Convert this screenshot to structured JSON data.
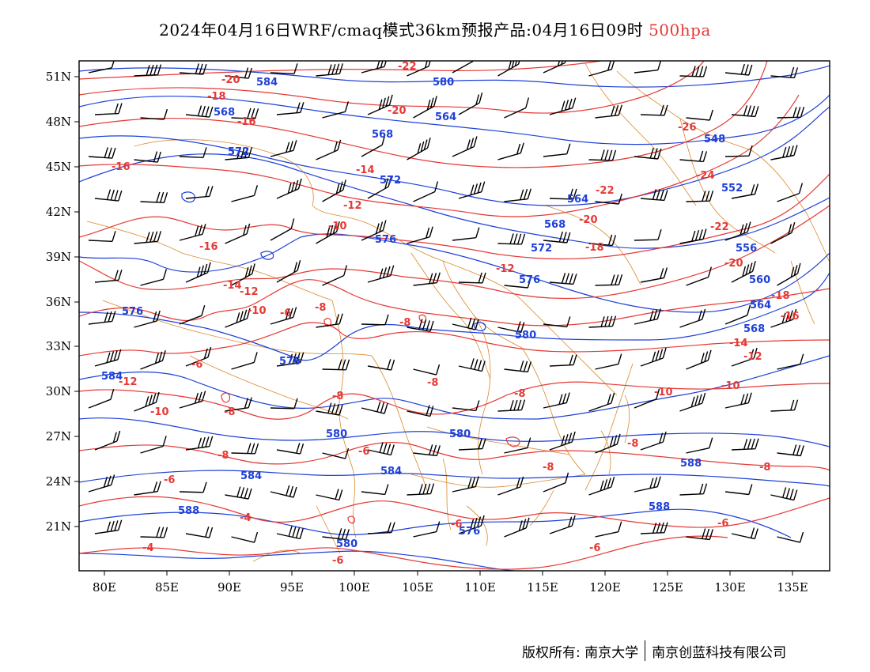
{
  "title": {
    "main": "2024年04月16日WRF/cmaq模式36km预报产品:04月16日09时",
    "level": "500hpa"
  },
  "colors": {
    "temperature": "#e53935",
    "height": "#1e40d8",
    "border": "#d9892b",
    "wind": "#000000"
  },
  "axes": {
    "lon_range": [
      78,
      138
    ],
    "lat_range": [
      17.8,
      51.8
    ],
    "x_ticks": [
      "80E",
      "85E",
      "90E",
      "95E",
      "100E",
      "105E",
      "110E",
      "115E",
      "120E",
      "125E",
      "130E",
      "135E"
    ],
    "y_ticks": [
      "51N",
      "48N",
      "45N",
      "42N",
      "39N",
      "36N",
      "33N",
      "30N",
      "27N",
      "24N",
      "21N"
    ]
  },
  "isotherm_labels": [
    "-22",
    "-20",
    "-18",
    "-16",
    "-20",
    "-16",
    "-14",
    "-12",
    "-10",
    "-8",
    "-6",
    "-16",
    "-14",
    "-12",
    "-10",
    "-8",
    "-6",
    "-8",
    "-12",
    "-10",
    "-8",
    "-8",
    "-6",
    "-8",
    "-6",
    "-4",
    "-4",
    "-6",
    "-26",
    "-24",
    "-22",
    "-20",
    "-18",
    "-22",
    "-20",
    "-18",
    "-16",
    "-14",
    "-12",
    "-10",
    "-10",
    "-8",
    "-8",
    "-8",
    "-6",
    "-6",
    "-6",
    "-8",
    "-12"
  ],
  "height_labels": [
    "584",
    "580",
    "568",
    "564",
    "568",
    "572",
    "572",
    "576",
    "576",
    "572",
    "576",
    "564",
    "568",
    "548",
    "552",
    "556",
    "560",
    "564",
    "568",
    "580",
    "576",
    "584",
    "580",
    "580",
    "584",
    "584",
    "588",
    "588",
    "588",
    "576",
    "580"
  ],
  "footer": {
    "copyright": "版权所有: 南京大学",
    "company": "南京创蓝科技有限公司"
  }
}
